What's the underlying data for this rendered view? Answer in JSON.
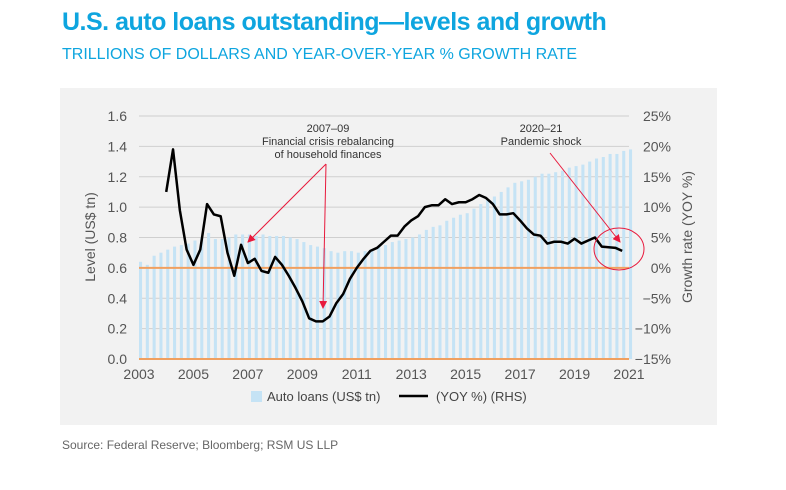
{
  "title": "U.S. auto loans outstanding—levels and growth",
  "subtitle": "TRILLIONS OF DOLLARS AND YEAR-OVER-YEAR % GROWTH RATE",
  "source": "Source: Federal Reserve; Bloomberg; RSM US LLP",
  "chart_data": {
    "type": "bar+line",
    "xlabel": "",
    "ylabel": "Level (US$ tn)",
    "y2label": "Growth rate (YOY %)",
    "xlim": [
      2003,
      2021
    ],
    "ylim": [
      0,
      1.6
    ],
    "y2lim": [
      -15,
      25
    ],
    "x_ticks": [
      "2003",
      "2005",
      "2007",
      "2009",
      "2011",
      "2013",
      "2015",
      "2017",
      "2019",
      "2021"
    ],
    "y_ticks": [
      "0.0",
      "0.2",
      "0.4",
      "0.6",
      "0.8",
      "1.0",
      "1.2",
      "1.4",
      "1.6"
    ],
    "y2_ticks": [
      "−15%",
      "−10%",
      "−5%",
      "0%",
      "5%",
      "10%",
      "15%",
      "20%",
      "25%"
    ],
    "grid": true,
    "legend_position": "bottom",
    "colors": {
      "bars": "#c5e3f5",
      "line": "#000000",
      "zero_line": "#f0a060",
      "annotation": "#e8193c"
    },
    "series": [
      {
        "name": "Auto loans (US$ tn)",
        "type": "bar",
        "axis": "left",
        "x_start": 2003,
        "step": 0.25,
        "values": [
          0.64,
          0.62,
          0.68,
          0.7,
          0.72,
          0.74,
          0.75,
          0.76,
          0.78,
          0.8,
          0.83,
          0.79,
          0.79,
          0.8,
          0.82,
          0.82,
          0.82,
          0.81,
          0.82,
          0.81,
          0.81,
          0.81,
          0.8,
          0.79,
          0.77,
          0.75,
          0.74,
          0.73,
          0.71,
          0.7,
          0.71,
          0.71,
          0.7,
          0.71,
          0.72,
          0.74,
          0.75,
          0.77,
          0.78,
          0.79,
          0.8,
          0.82,
          0.85,
          0.87,
          0.88,
          0.91,
          0.93,
          0.95,
          0.96,
          0.99,
          1.02,
          1.05,
          1.07,
          1.1,
          1.13,
          1.16,
          1.17,
          1.18,
          1.2,
          1.22,
          1.22,
          1.23,
          1.24,
          1.26,
          1.27,
          1.28,
          1.3,
          1.32,
          1.33,
          1.35,
          1.35,
          1.37,
          1.38,
          1.39
        ]
      },
      {
        "name": "(YOY %) (RHS)",
        "type": "line",
        "axis": "right",
        "x_start": 2004,
        "step": 0.25,
        "values": [
          12.5,
          19.5,
          9.5,
          3,
          0.5,
          3,
          10.5,
          8.8,
          8.5,
          2.5,
          -1.3,
          3.8,
          0.8,
          1.5,
          -0.5,
          -0.8,
          1.8,
          0.5,
          -1.3,
          -3.3,
          -5.5,
          -8.3,
          -8.8,
          -8.8,
          -8,
          -5.8,
          -4.3,
          -1.8,
          0,
          1.5,
          2.8,
          3.3,
          4.3,
          5.3,
          5.3,
          6.8,
          7.8,
          8.5,
          10,
          10.3,
          10.3,
          11.3,
          10.5,
          10.8,
          10.8,
          11.3,
          12,
          11.5,
          10.5,
          8.8,
          8.8,
          9,
          7.8,
          6.5,
          5.5,
          5.3,
          4,
          4.3,
          4.3,
          4,
          4.8,
          4,
          4.5,
          5,
          3.5,
          3.4,
          3.3,
          2.8
        ]
      }
    ],
    "annotations": [
      {
        "lines": [
          "2007–09",
          "Financial crisis rebalancing",
          "of household finances"
        ]
      },
      {
        "lines": [
          "2020–21",
          "Pandemic shock"
        ]
      }
    ]
  }
}
